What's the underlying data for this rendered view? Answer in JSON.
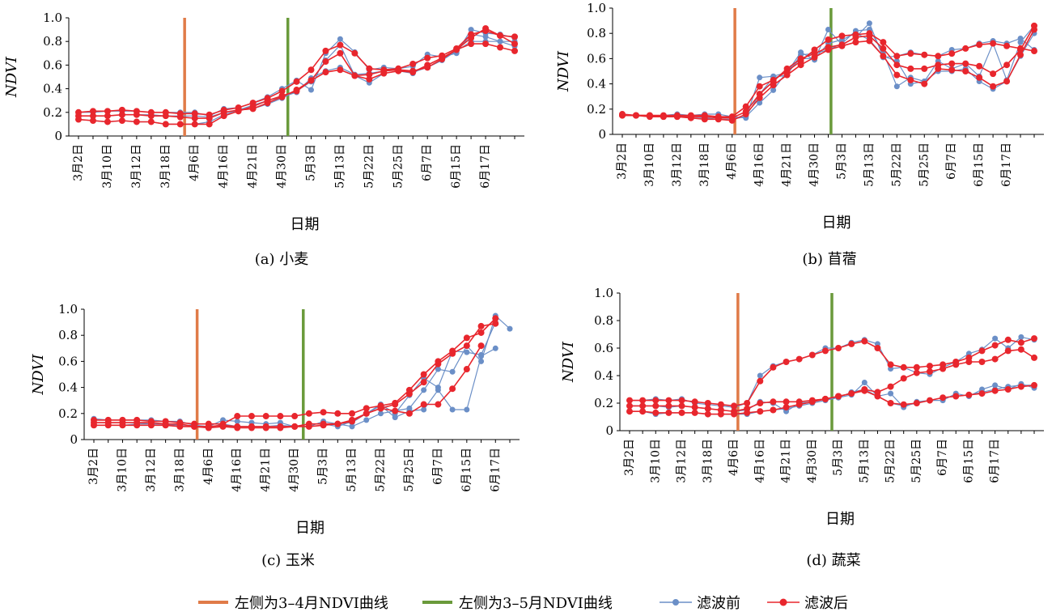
{
  "chart_data": [
    {
      "type": "line",
      "caption": "(a) 小麦",
      "xlabel": "日期",
      "ylabel": "NDVI",
      "ylim": [
        0,
        1.0
      ],
      "yticks": [
        "0",
        "0.2",
        "0.4",
        "0.6",
        "0.8",
        "1.0"
      ],
      "xtick_labels": [
        "3月2日",
        "3月10日",
        "3月12日",
        "3月18日",
        "4月6日",
        "4月16日",
        "4月21日",
        "4月30日",
        "5月3日",
        "5月13日",
        "5月22日",
        "5月25日",
        "6月7日",
        "6月15日",
        "6月17日"
      ],
      "vlines": {
        "orange_index": 7.3,
        "green_index": 14.4
      },
      "series": [
        {
          "name": "滤波前",
          "values": [
            0.2,
            0.2,
            0.21,
            0.21,
            0.21,
            0.2,
            0.2,
            0.2,
            0.2,
            0.17,
            0.23,
            0.24,
            0.28,
            0.33,
            0.4,
            0.47,
            0.39,
            0.7,
            0.82,
            0.71,
            0.56,
            0.58,
            0.57,
            0.59,
            0.69,
            0.67,
            0.7,
            0.9,
            0.87,
            0.86,
            0.83
          ]
        },
        {
          "name": "滤波前",
          "values": [
            0.17,
            0.17,
            0.17,
            0.18,
            0.18,
            0.18,
            0.17,
            0.17,
            0.17,
            0.16,
            0.2,
            0.22,
            0.23,
            0.27,
            0.32,
            0.38,
            0.46,
            0.64,
            0.77,
            0.51,
            0.45,
            0.53,
            0.55,
            0.53,
            0.6,
            0.66,
            0.71,
            0.86,
            0.84,
            0.8,
            0.8
          ]
        },
        {
          "name": "滤波前",
          "values": [
            0.14,
            0.13,
            0.12,
            0.13,
            0.12,
            0.12,
            0.1,
            0.1,
            0.1,
            0.12,
            0.18,
            0.22,
            0.26,
            0.3,
            0.33,
            0.37,
            0.49,
            0.55,
            0.58,
            0.52,
            0.53,
            0.55,
            0.56,
            0.54,
            0.58,
            0.64,
            0.72,
            0.8,
            0.8,
            0.8,
            0.76
          ]
        },
        {
          "name": "滤波后",
          "values": [
            0.2,
            0.21,
            0.21,
            0.22,
            0.21,
            0.2,
            0.2,
            0.19,
            0.19,
            0.18,
            0.22,
            0.24,
            0.28,
            0.32,
            0.38,
            0.46,
            0.56,
            0.72,
            0.77,
            0.7,
            0.57,
            0.56,
            0.57,
            0.61,
            0.66,
            0.68,
            0.74,
            0.86,
            0.89,
            0.85,
            0.84
          ]
        },
        {
          "name": "滤波后",
          "values": [
            0.17,
            0.17,
            0.17,
            0.18,
            0.18,
            0.17,
            0.17,
            0.16,
            0.15,
            0.15,
            0.2,
            0.22,
            0.23,
            0.28,
            0.33,
            0.39,
            0.47,
            0.63,
            0.7,
            0.51,
            0.48,
            0.53,
            0.55,
            0.54,
            0.6,
            0.66,
            0.73,
            0.83,
            0.91,
            0.85,
            0.78
          ]
        },
        {
          "name": "滤波后",
          "values": [
            0.14,
            0.13,
            0.12,
            0.13,
            0.12,
            0.12,
            0.1,
            0.1,
            0.1,
            0.1,
            0.17,
            0.21,
            0.25,
            0.3,
            0.34,
            0.38,
            0.47,
            0.54,
            0.56,
            0.51,
            0.52,
            0.55,
            0.56,
            0.55,
            0.58,
            0.65,
            0.73,
            0.78,
            0.78,
            0.75,
            0.72
          ]
        }
      ]
    },
    {
      "type": "line",
      "caption": "(b) 苜蓿",
      "xlabel": "日期",
      "ylabel": "NDVI",
      "ylim": [
        0,
        1.0
      ],
      "yticks": [
        "0",
        "0.2",
        "0.4",
        "0.6",
        "0.8",
        "1.0"
      ],
      "xtick_labels": [
        "3月2日",
        "3月10日",
        "3月12日",
        "3月18日",
        "4月6日",
        "4月16日",
        "4月21日",
        "4月30日",
        "5月3日",
        "5月13日",
        "5月22日",
        "5月25日",
        "6月7日",
        "6月15日",
        "6月17日"
      ],
      "vlines": {
        "orange_index": 8.2,
        "green_index": 15.2
      },
      "series": [
        {
          "name": "滤波前",
          "values": [
            0.16,
            0.15,
            0.15,
            0.15,
            0.16,
            0.15,
            0.16,
            0.16,
            0.14,
            0.13,
            0.45,
            0.46,
            0.49,
            0.65,
            0.59,
            0.83,
            0.71,
            0.77,
            0.88,
            0.61,
            0.62,
            0.65,
            0.63,
            0.62,
            0.67,
            0.68,
            0.72,
            0.74,
            0.72,
            0.76,
            0.67
          ]
        },
        {
          "name": "滤波前",
          "values": [
            0.15,
            0.15,
            0.15,
            0.14,
            0.15,
            0.14,
            0.14,
            0.13,
            0.13,
            0.14,
            0.32,
            0.45,
            0.47,
            0.63,
            0.64,
            0.67,
            0.72,
            0.82,
            0.83,
            0.65,
            0.38,
            0.45,
            0.42,
            0.58,
            0.52,
            0.56,
            0.46,
            0.72,
            0.43,
            0.73,
            0.86
          ]
        },
        {
          "name": "滤波前",
          "values": [
            0.15,
            0.15,
            0.14,
            0.14,
            0.14,
            0.14,
            0.13,
            0.12,
            0.12,
            0.14,
            0.25,
            0.35,
            0.5,
            0.6,
            0.6,
            0.72,
            0.75,
            0.8,
            0.75,
            0.62,
            0.58,
            0.4,
            0.42,
            0.5,
            0.5,
            0.52,
            0.42,
            0.36,
            0.42,
            0.62,
            0.8
          ]
        },
        {
          "name": "滤波后",
          "values": [
            0.16,
            0.15,
            0.15,
            0.15,
            0.15,
            0.15,
            0.15,
            0.14,
            0.14,
            0.22,
            0.38,
            0.43,
            0.5,
            0.58,
            0.67,
            0.75,
            0.78,
            0.79,
            0.8,
            0.73,
            0.62,
            0.64,
            0.63,
            0.62,
            0.64,
            0.68,
            0.71,
            0.72,
            0.7,
            0.68,
            0.66
          ]
        },
        {
          "name": "滤波后",
          "values": [
            0.15,
            0.15,
            0.15,
            0.14,
            0.14,
            0.14,
            0.14,
            0.13,
            0.13,
            0.18,
            0.32,
            0.42,
            0.52,
            0.6,
            0.64,
            0.69,
            0.71,
            0.77,
            0.78,
            0.68,
            0.55,
            0.52,
            0.52,
            0.55,
            0.56,
            0.56,
            0.54,
            0.48,
            0.55,
            0.67,
            0.86
          ]
        },
        {
          "name": "滤波后",
          "values": [
            0.15,
            0.15,
            0.14,
            0.14,
            0.14,
            0.13,
            0.12,
            0.12,
            0.11,
            0.16,
            0.29,
            0.39,
            0.47,
            0.55,
            0.61,
            0.67,
            0.7,
            0.73,
            0.74,
            0.62,
            0.47,
            0.43,
            0.4,
            0.52,
            0.51,
            0.5,
            0.45,
            0.38,
            0.42,
            0.63,
            0.83
          ]
        }
      ]
    },
    {
      "type": "line",
      "caption": "(c) 玉米",
      "xlabel": "日期",
      "ylabel": "NDVI",
      "ylim": [
        0,
        1.0
      ],
      "yticks": [
        "0",
        "0.2",
        "0.4",
        "0.6",
        "0.8",
        "1.0"
      ],
      "xtick_labels": [
        "3月2日",
        "3月10日",
        "3月12日",
        "3月18日",
        "4月6日",
        "4月16日",
        "4月21日",
        "4月30日",
        "5月3日",
        "5月13日",
        "5月22日",
        "5月25日",
        "6月7日",
        "6月15日",
        "6月17日"
      ],
      "vlines": {
        "orange_index": 7.2,
        "green_index": 14.6
      },
      "series": [
        {
          "name": "滤波前",
          "values": [
            0.16,
            0.15,
            0.15,
            0.15,
            0.15,
            0.14,
            0.14,
            0.11,
            0.1,
            0.15,
            0.14,
            0.13,
            0.12,
            0.13,
            0.1,
            0.1,
            0.14,
            0.12,
            0.1,
            0.15,
            0.2,
            0.22,
            0.24,
            0.38,
            0.54,
            0.52,
            0.72,
            0.6,
            0.95,
            0.85
          ]
        },
        {
          "name": "滤波前",
          "values": [
            0.13,
            0.13,
            0.13,
            0.13,
            0.12,
            0.12,
            0.11,
            0.11,
            0.09,
            0.12,
            0.1,
            0.1,
            0.1,
            0.11,
            0.1,
            0.12,
            0.12,
            0.1,
            0.14,
            0.2,
            0.27,
            0.2,
            0.34,
            0.47,
            0.4,
            0.68,
            0.67,
            0.65,
            0.9
          ]
        },
        {
          "name": "滤波前",
          "values": [
            0.11,
            0.11,
            0.11,
            0.12,
            0.12,
            0.12,
            0.1,
            0.1,
            0.09,
            0.1,
            0.1,
            0.1,
            0.1,
            0.1,
            0.1,
            0.1,
            0.11,
            0.12,
            0.13,
            0.2,
            0.26,
            0.17,
            0.22,
            0.23,
            0.38,
            0.23,
            0.23,
            0.64,
            0.7
          ]
        },
        {
          "name": "滤波后",
          "values": [
            0.15,
            0.15,
            0.15,
            0.15,
            0.14,
            0.14,
            0.13,
            0.12,
            0.12,
            0.12,
            0.18,
            0.18,
            0.18,
            0.18,
            0.18,
            0.2,
            0.21,
            0.2,
            0.2,
            0.24,
            0.26,
            0.28,
            0.38,
            0.5,
            0.6,
            0.68,
            0.78,
            0.82,
            0.93
          ]
        },
        {
          "name": "滤波后",
          "values": [
            0.13,
            0.13,
            0.13,
            0.13,
            0.13,
            0.12,
            0.12,
            0.1,
            0.1,
            0.11,
            0.1,
            0.1,
            0.1,
            0.1,
            0.1,
            0.12,
            0.12,
            0.12,
            0.15,
            0.2,
            0.24,
            0.27,
            0.35,
            0.44,
            0.58,
            0.66,
            0.72,
            0.87,
            0.89
          ]
        },
        {
          "name": "滤波后",
          "values": [
            0.11,
            0.11,
            0.11,
            0.11,
            0.11,
            0.11,
            0.1,
            0.1,
            0.09,
            0.1,
            0.09,
            0.09,
            0.09,
            0.09,
            0.1,
            0.1,
            0.11,
            0.12,
            0.14,
            0.2,
            0.24,
            0.22,
            0.2,
            0.27,
            0.27,
            0.39,
            0.54,
            0.72
          ]
        }
      ]
    },
    {
      "type": "line",
      "caption": "(d) 蔬菜",
      "xlabel": "日期",
      "ylabel": "NDVI",
      "ylim": [
        0,
        1.0
      ],
      "yticks": [
        "0",
        "0.2",
        "0.4",
        "0.6",
        "0.8",
        "1.0"
      ],
      "xtick_labels": [
        "3月2日",
        "3月10日",
        "3月12日",
        "3月18日",
        "4月6日",
        "4月16日",
        "4月21日",
        "4月30日",
        "5月3日",
        "5月13日",
        "5月22日",
        "5月25日",
        "6月7日",
        "6月15日",
        "6月17日"
      ],
      "vlines": {
        "orange_index": 8.3,
        "green_index": 15.5
      },
      "series": [
        {
          "name": "滤波前",
          "values": [
            0.22,
            0.22,
            0.23,
            0.22,
            0.23,
            0.2,
            0.19,
            0.18,
            0.17,
            0.2,
            0.4,
            0.47,
            0.5,
            0.52,
            0.55,
            0.6,
            0.6,
            0.64,
            0.66,
            0.63,
            0.45,
            0.46,
            0.42,
            0.41,
            0.46,
            0.5,
            0.56,
            0.59,
            0.67,
            0.6,
            0.68,
            0.66
          ]
        },
        {
          "name": "滤波前",
          "values": [
            0.18,
            0.18,
            0.18,
            0.17,
            0.18,
            0.17,
            0.16,
            0.15,
            0.14,
            0.15,
            0.21,
            0.2,
            0.14,
            0.2,
            0.21,
            0.23,
            0.24,
            0.26,
            0.35,
            0.25,
            0.27,
            0.17,
            0.21,
            0.22,
            0.22,
            0.27,
            0.25,
            0.3,
            0.33,
            0.3,
            0.34,
            0.31
          ]
        },
        {
          "name": "滤波前",
          "values": [
            0.14,
            0.14,
            0.12,
            0.13,
            0.13,
            0.13,
            0.12,
            0.12,
            0.12,
            0.12,
            0.14,
            0.15,
            0.16,
            0.18,
            0.2,
            0.22,
            0.24,
            0.28,
            0.3,
            0.25,
            0.2,
            0.18,
            0.2,
            0.22,
            0.24,
            0.25,
            0.26,
            0.28,
            0.3,
            0.32,
            0.33,
            0.33
          ]
        },
        {
          "name": "滤波后",
          "values": [
            0.22,
            0.22,
            0.22,
            0.22,
            0.22,
            0.21,
            0.2,
            0.19,
            0.18,
            0.2,
            0.36,
            0.46,
            0.5,
            0.52,
            0.55,
            0.58,
            0.6,
            0.63,
            0.65,
            0.6,
            0.48,
            0.46,
            0.46,
            0.47,
            0.48,
            0.5,
            0.53,
            0.58,
            0.62,
            0.66,
            0.64,
            0.67
          ]
        },
        {
          "name": "滤波后",
          "values": [
            0.18,
            0.18,
            0.18,
            0.18,
            0.18,
            0.17,
            0.16,
            0.15,
            0.14,
            0.16,
            0.2,
            0.21,
            0.21,
            0.21,
            0.22,
            0.23,
            0.25,
            0.27,
            0.3,
            0.28,
            0.32,
            0.38,
            0.42,
            0.43,
            0.45,
            0.48,
            0.5,
            0.5,
            0.52,
            0.58,
            0.59,
            0.53
          ]
        },
        {
          "name": "滤波后",
          "values": [
            0.14,
            0.14,
            0.13,
            0.13,
            0.13,
            0.13,
            0.12,
            0.12,
            0.12,
            0.13,
            0.14,
            0.15,
            0.17,
            0.19,
            0.21,
            0.23,
            0.25,
            0.27,
            0.29,
            0.25,
            0.2,
            0.19,
            0.2,
            0.22,
            0.24,
            0.25,
            0.26,
            0.27,
            0.29,
            0.3,
            0.32,
            0.33
          ]
        }
      ]
    }
  ],
  "legend": [
    {
      "label": "左侧为3–4月NDVI曲线",
      "kind": "bar",
      "color": "#e07b48"
    },
    {
      "label": "左侧为3–5月NDVI曲线",
      "kind": "bar",
      "color": "#6a9a3b"
    },
    {
      "label": "滤波前",
      "kind": "marker",
      "color": "#6b8fc7"
    },
    {
      "label": "滤波后",
      "kind": "marker",
      "color": "#e8262d"
    }
  ],
  "colors": {
    "before": "#6b8fc7",
    "after": "#e8262d",
    "orange": "#e07b48",
    "green": "#6a9a3b"
  }
}
